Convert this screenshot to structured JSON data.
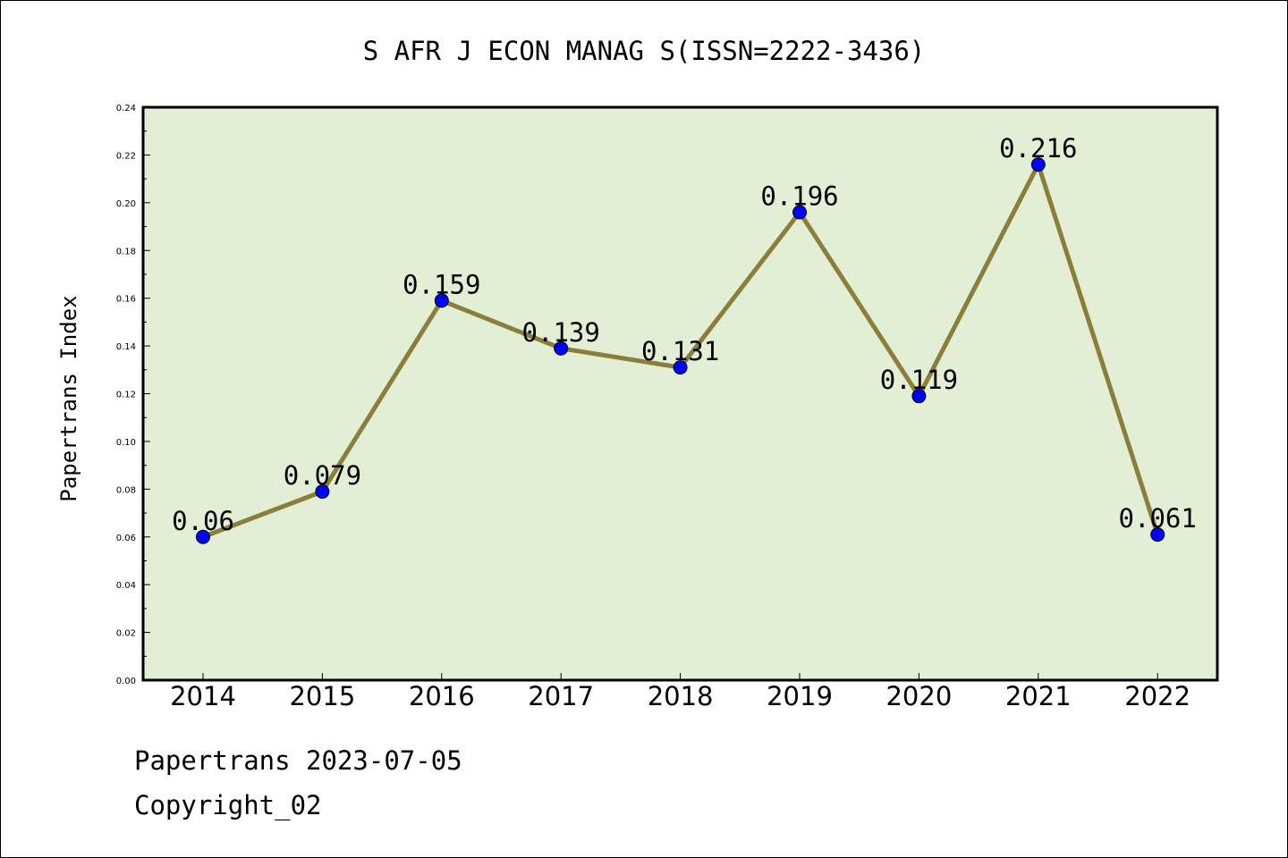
{
  "chart_data": {
    "type": "line",
    "title": "S AFR J ECON MANAG S(ISSN=2222-3436)",
    "xlabel": "",
    "ylabel": "Papertrans Index",
    "categories": [
      "2014",
      "2015",
      "2016",
      "2017",
      "2018",
      "2019",
      "2020",
      "2021",
      "2022"
    ],
    "series": [
      {
        "values": [
          0.06,
          0.079,
          0.159,
          0.139,
          0.131,
          0.196,
          0.119,
          0.216,
          0.061
        ],
        "labels": [
          "0.06",
          "0.079",
          "0.159",
          "0.139",
          "0.131",
          "0.196",
          "0.119",
          "0.216",
          "0.061"
        ]
      }
    ],
    "ylim": [
      0,
      0.24
    ],
    "yticks": [
      "0.00",
      "0.02",
      "0.04",
      "0.06",
      "0.08",
      "0.10",
      "0.12",
      "0.14",
      "0.16",
      "0.18",
      "0.20",
      "0.22",
      "0.24"
    ],
    "grid": false,
    "colors": {
      "plot_background": "#e2efd4",
      "line": "#8b7d3a",
      "marker": "#0000ff"
    }
  },
  "footer": {
    "line1": "Papertrans 2023-07-05",
    "line2": "Copyright_02"
  }
}
